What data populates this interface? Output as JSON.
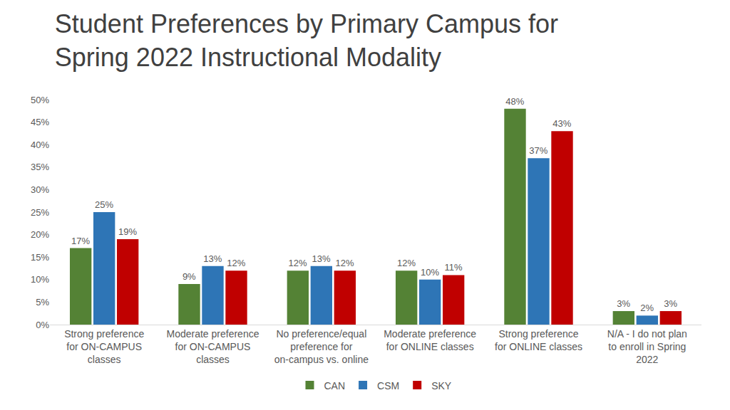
{
  "chart_data": {
    "type": "bar",
    "title": "Student Preferences by Primary Campus for Spring 2022 Instructional Modality",
    "categories": [
      "Strong preference for ON-CAMPUS classes",
      "Moderate preference for ON-CAMPUS classes",
      "No preference/equal preference for on-campus vs. online",
      "Moderate preference for ONLINE classes",
      "Strong preference for ONLINE classes",
      "N/A - I do not plan to enroll in Spring 2022"
    ],
    "series": [
      {
        "name": "CAN",
        "color": "#548235",
        "values": [
          17,
          9,
          12,
          12,
          48,
          3
        ],
        "value_labels": [
          "17%",
          "9%",
          "12%",
          "12%",
          "48%",
          "3%"
        ]
      },
      {
        "name": "CSM",
        "color": "#2e75b6",
        "values": [
          25,
          13,
          13,
          10,
          37,
          2
        ],
        "value_labels": [
          "25%",
          "13%",
          "13%",
          "10%",
          "37%",
          "2%"
        ]
      },
      {
        "name": "SKY",
        "color": "#c00000",
        "values": [
          19,
          12,
          12,
          11,
          43,
          3
        ],
        "value_labels": [
          "19%",
          "12%",
          "12%",
          "11%",
          "43%",
          "3%"
        ]
      }
    ],
    "ylim": [
      0,
      50
    ],
    "yticks": [
      {
        "value": 0,
        "label": "0%"
      },
      {
        "value": 5,
        "label": "5%"
      },
      {
        "value": 10,
        "label": "10%"
      },
      {
        "value": 15,
        "label": "15%"
      },
      {
        "value": 20,
        "label": "20%"
      },
      {
        "value": 25,
        "label": "25%"
      },
      {
        "value": 30,
        "label": "30%"
      },
      {
        "value": 35,
        "label": "35%"
      },
      {
        "value": 40,
        "label": "40%"
      },
      {
        "value": 45,
        "label": "45%"
      },
      {
        "value": 50,
        "label": "50%"
      }
    ],
    "grid": false,
    "legend": "bottom",
    "data_labels": true
  }
}
